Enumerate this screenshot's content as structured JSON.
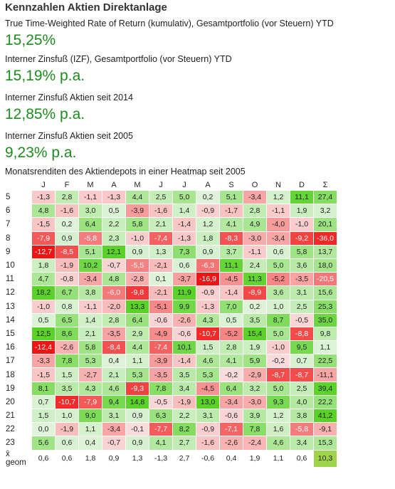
{
  "title": "Kennzahlen Aktien Direktanlage",
  "metrics": [
    {
      "label": "True Time-Weighted Rate of Return (kumulativ), Gesamtportfolio (vor Steuern) YTD",
      "value": "15,25%"
    },
    {
      "label": "Interner Zinsfuß (IZF), Gesamtportfolio (vor Steuern) YTD",
      "value": "15,19% p.a."
    },
    {
      "label": "Interner Zinsfuß Aktien seit 2014",
      "value": "12,85% p.a."
    },
    {
      "label": "Interner Zinsfuß Aktien seit 2005",
      "value": "9,23% p.a."
    }
  ],
  "heatmap": {
    "label": "Monatsrenditen des Aktiendepots in einer Heatmap seit 2005",
    "columns": [
      "J",
      "F",
      "M",
      "A",
      "M",
      "J",
      "J",
      "A",
      "S",
      "O",
      "N",
      "D",
      "Σ"
    ],
    "rows": [
      {
        "year": "5",
        "values": [
          "-1,3",
          "2,8",
          "-1,1",
          "-1,3",
          "4,4",
          "2,5",
          "5,0",
          "0,2",
          "5,1",
          "-3,4",
          "1,2",
          "11,1",
          "27,4"
        ]
      },
      {
        "year": "6",
        "values": [
          "4,8",
          "-1,6",
          "3,0",
          "0,5",
          "-3,9",
          "-1,6",
          "1,4",
          "-0,9",
          "-1,7",
          "2,8",
          "-1,1",
          "1,9",
          "3,2"
        ]
      },
      {
        "year": "7",
        "values": [
          "-1,5",
          "0,2",
          "6,4",
          "2,2",
          "5,8",
          "2,1",
          "-1,4",
          "1,2",
          "4,1",
          "4,9",
          "-4,0",
          "-1,0",
          "20,1"
        ]
      },
      {
        "year": "8",
        "values": [
          "-7,9",
          "0,9",
          "-5,8",
          "2,3",
          "-1,0",
          "-7,4",
          "-1,3",
          "1,8",
          "-8,3",
          "-3,0",
          "-3,4",
          "-9,2",
          "-36,0"
        ]
      },
      {
        "year": "9",
        "values": [
          "-12,7",
          "-8,5",
          "5,1",
          "12,1",
          "0,9",
          "1,3",
          "7,3",
          "0,9",
          "3,7",
          "-1,1",
          "0,6",
          "5,8",
          "13,7"
        ]
      },
      {
        "year": "10",
        "values": [
          "1,8",
          "-1,9",
          "10,2",
          "-0,7",
          "-5,5",
          "-2,1",
          "0,6",
          "-6,3",
          "11,1",
          "2,4",
          "5,0",
          "3,6",
          "18,0"
        ]
      },
      {
        "year": "11",
        "values": [
          "4,7",
          "-0,8",
          "-3,4",
          "4,8",
          "-2,8",
          "0,1",
          "-3,7",
          "-16,9",
          "-4,5",
          "11,3",
          "-5,2",
          "-3,5",
          "-20,5"
        ]
      },
      {
        "year": "12",
        "values": [
          "18,2",
          "6,7",
          "3,8",
          "-6,0",
          "-9,8",
          "-2,1",
          "11,9",
          "-0,9",
          "-1,4",
          "-8,9",
          "3,6",
          "3,1",
          "15,6"
        ]
      },
      {
        "year": "13",
        "values": [
          "-1,0",
          "0,8",
          "-1,1",
          "-2,0",
          "13,3",
          "-5,1",
          "9,9",
          "-1,3",
          "7,0",
          "0,2",
          "1,0",
          "2,5",
          "25,3"
        ]
      },
      {
        "year": "14",
        "values": [
          "0,5",
          "6,5",
          "1,4",
          "2,8",
          "6,4",
          "-0,6",
          "-2,6",
          "4,3",
          "0,5",
          "3,5",
          "8,7",
          "-0,5",
          "35,0"
        ]
      },
      {
        "year": "15",
        "values": [
          "12,5",
          "8,6",
          "2,1",
          "-3,5",
          "2,9",
          "-4,9",
          "-0,6",
          "-10,7",
          "-5,2",
          "15,4",
          "5,0",
          "-8,8",
          "9,8"
        ]
      },
      {
        "year": "16",
        "values": [
          "-12,4",
          "-2,6",
          "5,8",
          "-8,4",
          "4,4",
          "-7,4",
          "10,1",
          "1,5",
          "2,8",
          "1,9",
          "-1,0",
          "9,5",
          "1,1"
        ]
      },
      {
        "year": "17",
        "values": [
          "-3,3",
          "7,8",
          "5,3",
          "0,4",
          "1,1",
          "-3,9",
          "-1,4",
          "4,6",
          "4,1",
          "5,9",
          "-0,2",
          "0,7",
          "22,5"
        ]
      },
      {
        "year": "18",
        "values": [
          "-1,5",
          "1,5",
          "-2,7",
          "2,1",
          "5,3",
          "-3,5",
          "3,5",
          "5,3",
          "-0,2",
          "-2,9",
          "-8,7",
          "-8,7",
          "-11,1"
        ]
      },
      {
        "year": "19",
        "values": [
          "8,1",
          "3,5",
          "4,3",
          "4,6",
          "-9,3",
          "7,8",
          "3,4",
          "-4,5",
          "6,4",
          "3,2",
          "5,0",
          "2,5",
          "39,4"
        ]
      },
      {
        "year": "20",
        "values": [
          "0,7",
          "-10,7",
          "-7,9",
          "9,4",
          "14,8",
          "-0,5",
          "-1,9",
          "13,0",
          "-3,4",
          "-3,0",
          "9,3",
          "4,0",
          "22,2"
        ]
      },
      {
        "year": "21",
        "values": [
          "1,5",
          "1,0",
          "9,0",
          "3,1",
          "0,9",
          "6,3",
          "2,2",
          "3,1",
          "-0,6",
          "3,9",
          "1,2",
          "3,8",
          "41,2"
        ]
      },
      {
        "year": "22",
        "values": [
          "0,0",
          "-1,9",
          "1,1",
          "-3,4",
          "-0,1",
          "-7,7",
          "8,2",
          "-0,9",
          "-7,1",
          "7,8",
          "1,6",
          "-5,8",
          "-9,1"
        ]
      },
      {
        "year": "23",
        "values": [
          "5,6",
          "0,6",
          "0,4",
          "-0,7",
          "0,9",
          "4,1",
          "2,7",
          "-1,6",
          "-2,6",
          "-2,4",
          "4,6",
          "3,4",
          "15,3"
        ]
      },
      {
        "year": "x̄ geom",
        "values": [
          "0,6",
          "0,6",
          "1,8",
          "0,9",
          "1,3",
          "-1,3",
          "2,7",
          "-0,6",
          "0,4",
          "1,9",
          "1,1",
          "0,6",
          "10,3"
        ]
      }
    ]
  }
}
